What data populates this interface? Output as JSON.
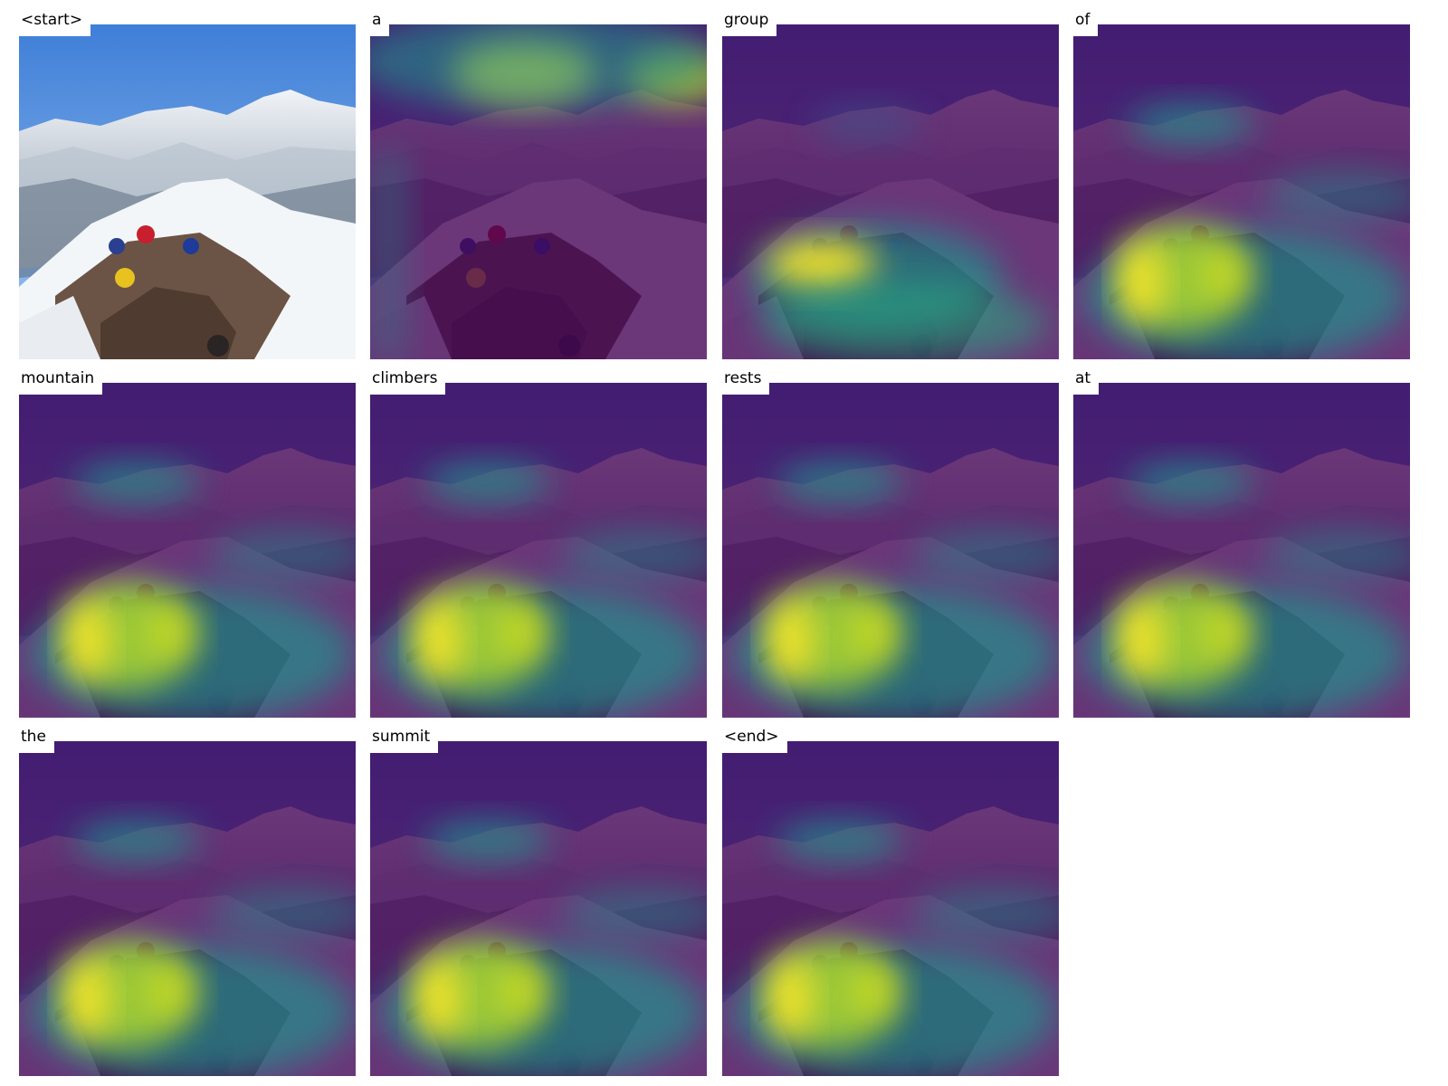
{
  "panels": [
    {
      "word": "<start>",
      "attention": "none"
    },
    {
      "word": "a",
      "attention": "sky"
    },
    {
      "word": "group",
      "attention": "climbers"
    },
    {
      "word": "of",
      "attention": "left-slope"
    },
    {
      "word": "mountain",
      "attention": "left-slope"
    },
    {
      "word": "climbers",
      "attention": "left-slope"
    },
    {
      "word": "rests",
      "attention": "left-slope"
    },
    {
      "word": "at",
      "attention": "left-slope"
    },
    {
      "word": "the",
      "attention": "left-slope"
    },
    {
      "word": "summit",
      "attention": "left-slope"
    },
    {
      "word": "<end>",
      "attention": "left-slope"
    }
  ],
  "colors": {
    "sky": "#4f86d8",
    "snow": "#e8edf2",
    "rock": "#6b5445",
    "viridis_low": "#440154",
    "viridis_mid": "#21918c",
    "viridis_high": "#fde725"
  }
}
